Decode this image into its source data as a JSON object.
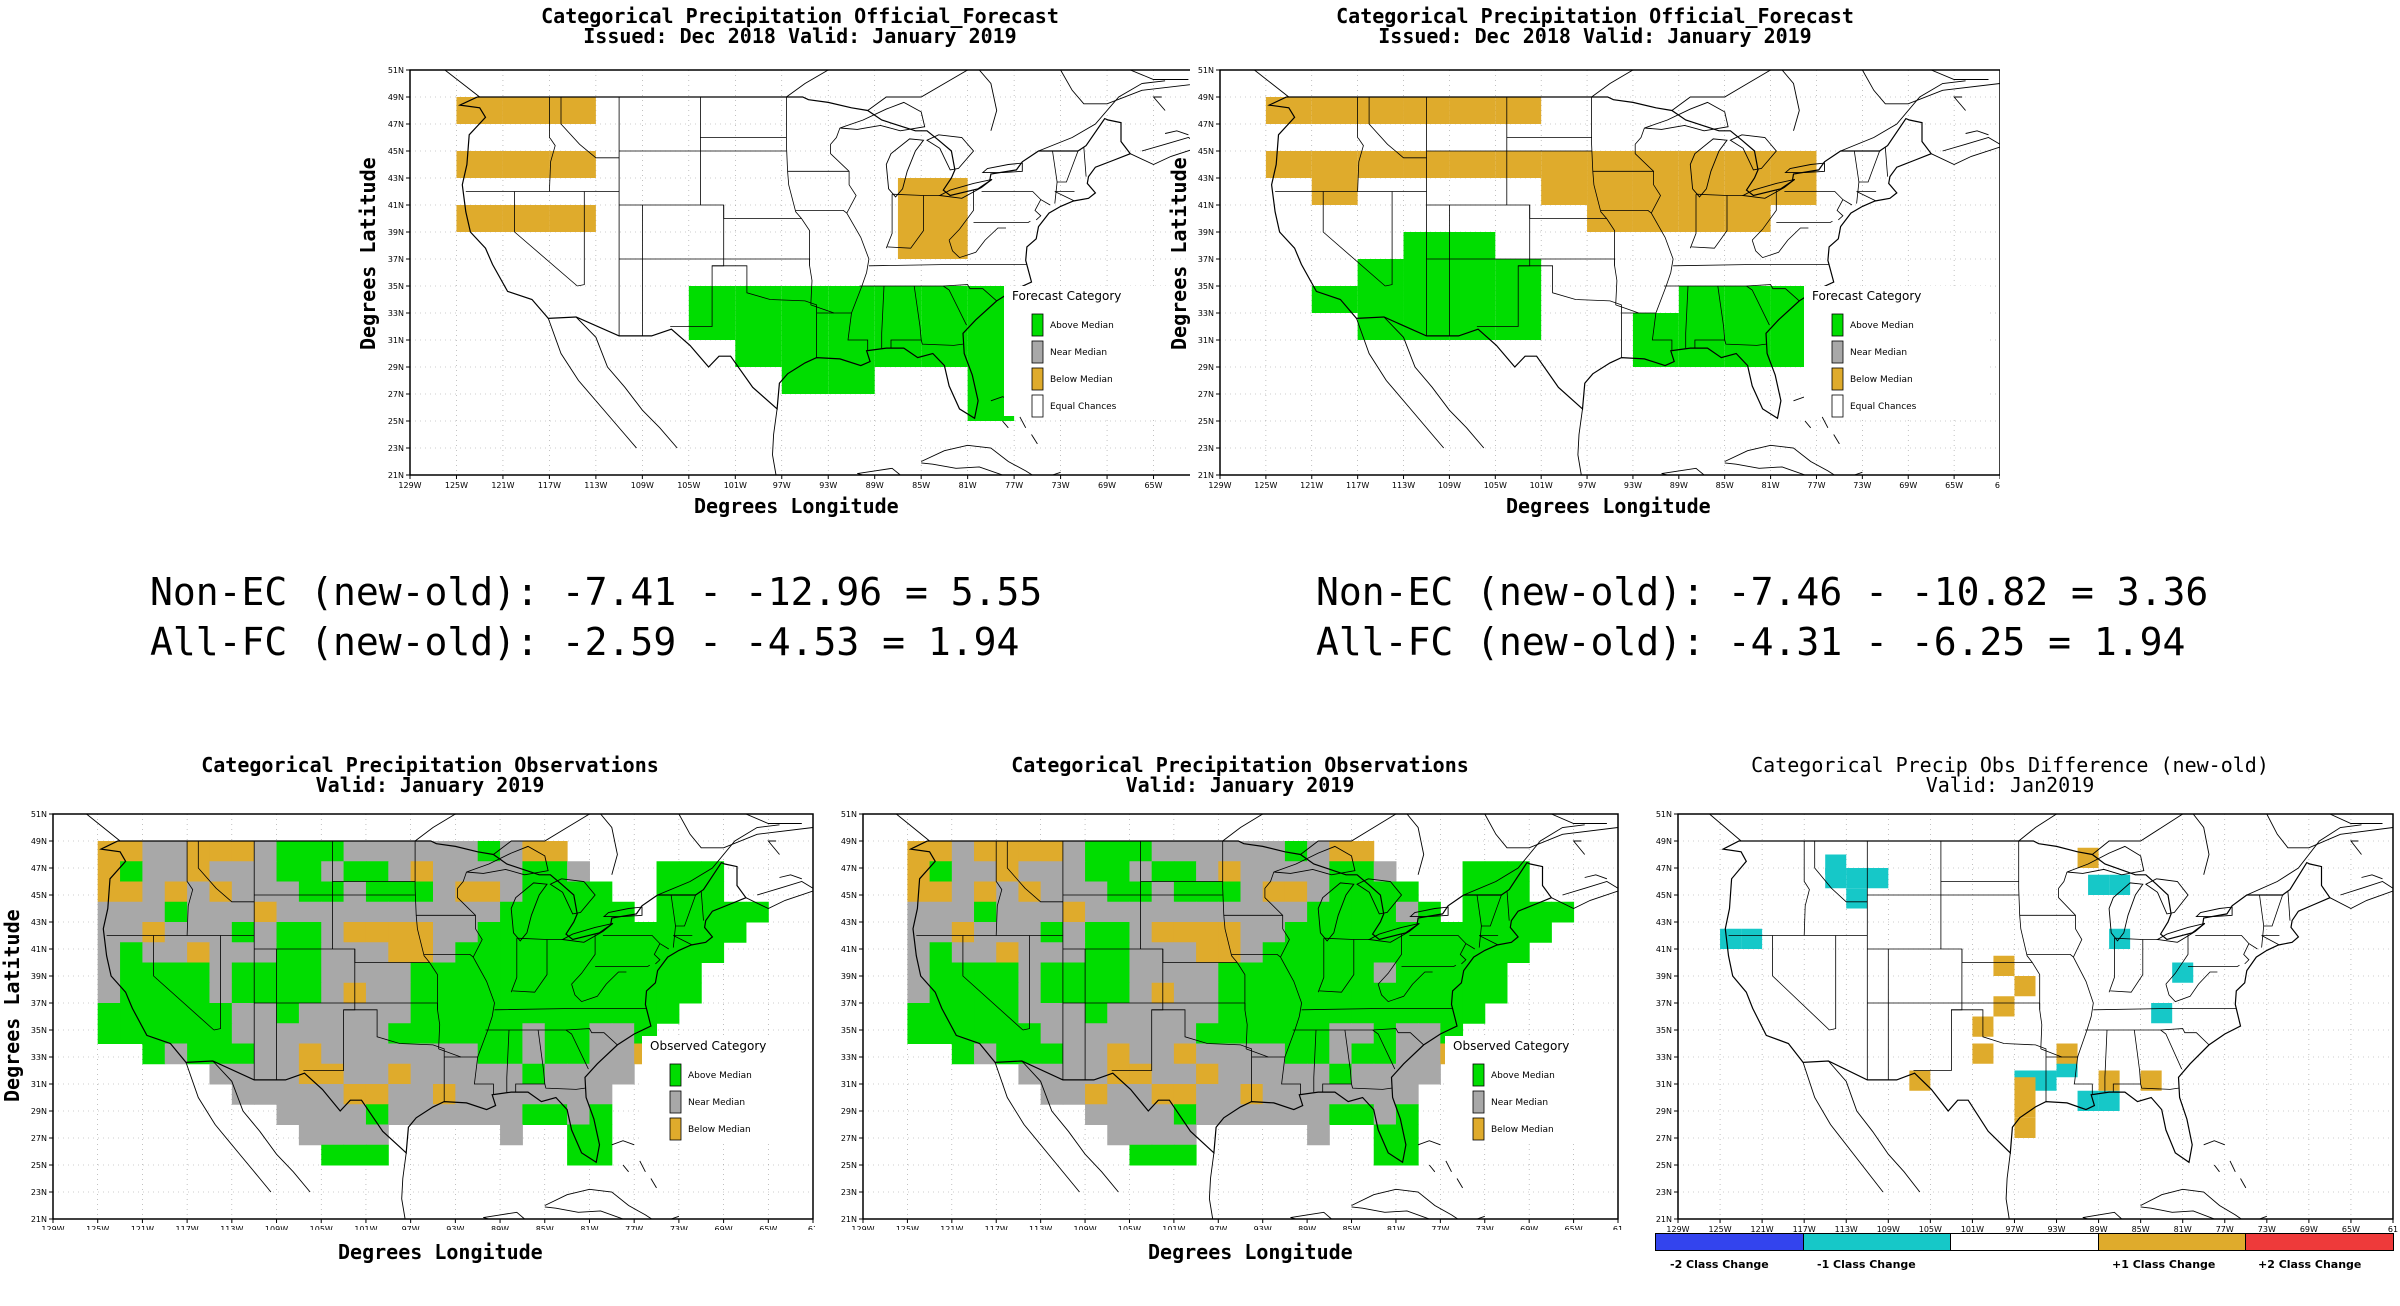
{
  "panels": [
    {
      "id": "fc_old",
      "title_line1": "Categorical Precipitation Official_Forecast",
      "title_line2": "Issued: Dec 2018 Valid: January 2019",
      "xlabel": "Degrees Longitude",
      "ylabel": "Degrees Latitude",
      "legend_title": "Forecast Category",
      "legend_items": [
        "Above Median",
        "Near Median",
        "Below Median",
        "Equal Chances"
      ],
      "legend_colors": [
        "#00dd00",
        "#a8a8a8",
        "#dfab2c",
        "#ffffff"
      ],
      "regions": [
        {
          "category": "below",
          "cells": [
            [
              -125,
              49
            ],
            [
              -121,
              49
            ],
            [
              -117,
              49
            ],
            [
              -125,
              45
            ],
            [
              -121,
              45
            ],
            [
              -117,
              45
            ],
            [
              -125,
              41
            ],
            [
              -121,
              41
            ],
            [
              -117,
              41
            ],
            [
              -87,
              43
            ],
            [
              -85,
              43
            ],
            [
              -87,
              41
            ],
            [
              -85,
              41
            ],
            [
              -87,
              39
            ],
            [
              -85,
              39
            ]
          ]
        },
        {
          "category": "above",
          "cells": [
            [
              -105,
              35
            ],
            [
              -101,
              35
            ],
            [
              -97,
              35
            ],
            [
              -93,
              35
            ],
            [
              -89,
              35
            ],
            [
              -85,
              35
            ],
            [
              -81,
              35
            ],
            [
              -105,
              33
            ],
            [
              -101,
              33
            ],
            [
              -97,
              33
            ],
            [
              -93,
              33
            ],
            [
              -89,
              33
            ],
            [
              -85,
              33
            ],
            [
              -81,
              33
            ],
            [
              -101,
              31
            ],
            [
              -97,
              31
            ],
            [
              -93,
              31
            ],
            [
              -89,
              31
            ],
            [
              -85,
              31
            ],
            [
              -81,
              31
            ],
            [
              -97,
              29
            ],
            [
              -93,
              29
            ],
            [
              -81,
              29
            ],
            [
              -81,
              27
            ]
          ]
        }
      ]
    },
    {
      "id": "fc_new",
      "title_line1": "Categorical Precipitation Official_Forecast",
      "title_line2": "Issued: Dec 2018 Valid: January 2019",
      "xlabel": "Degrees Longitude",
      "ylabel": "Degrees Latitude",
      "legend_title": "Forecast Category",
      "legend_items": [
        "Above Median",
        "Near Median",
        "Below Median",
        "Equal Chances"
      ],
      "legend_colors": [
        "#00dd00",
        "#a8a8a8",
        "#dfab2c",
        "#ffffff"
      ],
      "regions": [
        {
          "category": "below",
          "cells": [
            [
              -125,
              49
            ],
            [
              -121,
              49
            ],
            [
              -117,
              49
            ],
            [
              -113,
              49
            ],
            [
              -109,
              49
            ],
            [
              -105,
              49
            ],
            [
              -125,
              45
            ],
            [
              -121,
              45
            ],
            [
              -117,
              45
            ],
            [
              -113,
              45
            ],
            [
              -109,
              45
            ],
            [
              -105,
              45
            ],
            [
              -101,
              45
            ],
            [
              -97,
              45
            ],
            [
              -93,
              45
            ],
            [
              -89,
              45
            ],
            [
              -85,
              45
            ],
            [
              -81,
              45
            ],
            [
              -121,
              43
            ],
            [
              -101,
              43
            ],
            [
              -97,
              43
            ],
            [
              -93,
              43
            ],
            [
              -89,
              43
            ],
            [
              -85,
              43
            ],
            [
              -81,
              43
            ],
            [
              -97,
              41
            ],
            [
              -93,
              41
            ],
            [
              -89,
              41
            ],
            [
              -85,
              41
            ]
          ]
        },
        {
          "category": "above",
          "cells": [
            [
              -113,
              39
            ],
            [
              -109,
              39
            ],
            [
              -117,
              37
            ],
            [
              -113,
              37
            ],
            [
              -109,
              37
            ],
            [
              -105,
              37
            ],
            [
              -121,
              35
            ],
            [
              -117,
              35
            ],
            [
              -113,
              35
            ],
            [
              -109,
              35
            ],
            [
              -105,
              35
            ],
            [
              -117,
              33
            ],
            [
              -113,
              33
            ],
            [
              -109,
              33
            ],
            [
              -105,
              33
            ],
            [
              -89,
              35
            ],
            [
              -85,
              35
            ],
            [
              -81,
              35
            ],
            [
              -77,
              35
            ],
            [
              -93,
              33
            ],
            [
              -89,
              33
            ],
            [
              -85,
              33
            ],
            [
              -81,
              33
            ],
            [
              -93,
              31
            ],
            [
              -89,
              31
            ],
            [
              -85,
              31
            ],
            [
              -81,
              31
            ]
          ]
        }
      ]
    },
    {
      "id": "obs_old",
      "title_line1": "Categorical Precipitation Observations",
      "title_line2": "Valid: January 2019",
      "xlabel": "Degrees Longitude",
      "ylabel": "Degrees Latitude",
      "legend_title": "Observed Category",
      "legend_items": [
        "Above Median",
        "Near Median",
        "Below Median"
      ],
      "legend_colors": [
        "#00dd00",
        "#a8a8a8",
        "#dfab2c"
      ]
    },
    {
      "id": "obs_new",
      "title_line1": "Categorical Precipitation Observations",
      "title_line2": "Valid: January 2019",
      "xlabel": "Degrees Longitude",
      "ylabel": "",
      "legend_title": "Observed Category",
      "legend_items": [
        "Above Median",
        "Near Median",
        "Below Median"
      ],
      "legend_colors": [
        "#00dd00",
        "#a8a8a8",
        "#dfab2c"
      ]
    },
    {
      "id": "diff",
      "title_line1": "Categorical Precip Obs Difference (new-old)",
      "title_line2": "Valid: Jan2019",
      "xlabel": "",
      "ylabel": "",
      "legend_title": "",
      "legend_items": [],
      "colorbar_labels": [
        "-2 Class Change",
        "-1 Class Change",
        "+1 Class Change",
        "+2 Class Change"
      ],
      "colorbar_colors": [
        "#3333ee",
        "#16c8c8",
        "#ffffff",
        "#dfab2c",
        "#ee3333"
      ]
    }
  ],
  "axes": {
    "lat_ticks": [
      "51N",
      "49N",
      "47N",
      "45N",
      "43N",
      "41N",
      "39N",
      "37N",
      "35N",
      "33N",
      "31N",
      "29N",
      "27N",
      "25N",
      "23N",
      "21N"
    ],
    "lon_ticks": [
      "129W",
      "125W",
      "121W",
      "117W",
      "113W",
      "109W",
      "105W",
      "101W",
      "97W",
      "93W",
      "89W",
      "85W",
      "81W",
      "77W",
      "73W",
      "69W",
      "65W",
      "61"
    ],
    "lon_range": [
      -129,
      -61
    ],
    "lat_range": [
      21,
      51
    ]
  },
  "stats": {
    "left_line1": "Non-EC (new-old): -7.41 - -12.96 = 5.55",
    "left_line2": "All-FC (new-old): -2.59 - -4.53 = 1.94",
    "right_line1": "Non-EC (new-old): -7.46 - -10.82 = 3.36",
    "right_line2": "All-FC (new-old): -4.31 - -6.25 = 1.94"
  },
  "category_colors": {
    "above": "#00dd00",
    "near": "#a8a8a8",
    "below": "#dfab2c",
    "minus1": "#16c8c8",
    "minus2": "#3333ee",
    "plus2": "#ee3333"
  }
}
